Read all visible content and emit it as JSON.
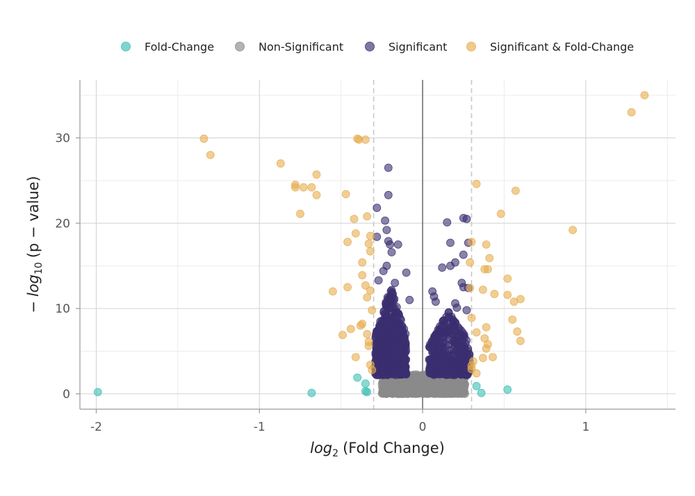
{
  "chart_data": {
    "type": "scatter",
    "title": "",
    "xlabel": {
      "math": "log",
      "sub": "2",
      "rest": "(Fold Change)"
    },
    "ylabel": {
      "prefix": "−",
      "math": "log",
      "sub": "10",
      "rest": "(p − value)"
    },
    "xlim": [
      -2.1,
      1.55
    ],
    "ylim": [
      -1.8,
      36.8
    ],
    "x_ticks": [
      -2,
      -1,
      0,
      1
    ],
    "x_tick_labels": [
      "-2",
      "-1",
      "0",
      "1"
    ],
    "y_ticks": [
      0,
      10,
      20,
      30
    ],
    "y_tick_labels": [
      "0",
      "10",
      "20",
      "30"
    ],
    "grid": true,
    "legend_position": "top",
    "thresholds": {
      "fold_change": [
        -0.3,
        0.3
      ],
      "zero_line_x": 0
    },
    "series": [
      {
        "name": "Fold-Change",
        "color": "#3cbfb4",
        "points": [
          [
            -1.99,
            0.2
          ],
          [
            -0.68,
            0.1
          ],
          [
            -0.4,
            1.9
          ],
          [
            -0.35,
            1.2
          ],
          [
            -0.35,
            0.3
          ],
          [
            -0.34,
            0.2
          ],
          [
            0.33,
            0.9
          ],
          [
            0.36,
            0.1
          ],
          [
            0.52,
            0.5
          ]
        ]
      },
      {
        "name": "Non-Significant",
        "color": "#8a8a8a",
        "cloud": {
          "x_range": [
            -0.25,
            0.26
          ],
          "y_range": [
            0,
            2.3
          ],
          "count": 700
        }
      },
      {
        "name": "Significant",
        "color": "#3b2e70",
        "points": [
          [
            -0.21,
            26.5
          ],
          [
            -0.21,
            23.3
          ],
          [
            -0.28,
            21.8
          ],
          [
            -0.23,
            20.3
          ],
          [
            -0.22,
            19.2
          ],
          [
            -0.28,
            18.4
          ],
          [
            -0.21,
            17.9
          ],
          [
            -0.2,
            17.5
          ],
          [
            -0.19,
            16.6
          ],
          [
            -0.15,
            17.5
          ],
          [
            -0.22,
            15.0
          ],
          [
            -0.24,
            14.4
          ],
          [
            -0.1,
            14.2
          ],
          [
            -0.17,
            13.0
          ],
          [
            -0.27,
            13.3
          ],
          [
            0.25,
            20.6
          ],
          [
            0.15,
            20.1
          ],
          [
            0.27,
            20.5
          ],
          [
            0.17,
            17.7
          ],
          [
            0.28,
            17.7
          ],
          [
            0.25,
            16.3
          ],
          [
            0.2,
            15.4
          ],
          [
            0.17,
            15.0
          ],
          [
            0.12,
            14.8
          ],
          [
            0.24,
            13.0
          ],
          [
            0.28,
            12.4
          ],
          [
            0.25,
            12.5
          ],
          [
            0.06,
            12.0
          ],
          [
            0.07,
            11.4
          ],
          [
            0.08,
            10.8
          ],
          [
            0.2,
            10.6
          ],
          [
            0.21,
            10.1
          ],
          [
            -0.08,
            11.0
          ],
          [
            0.16,
            9.5
          ],
          [
            0.27,
            9.8
          ]
        ],
        "clouds": [
          {
            "x_range": [
              -0.29,
              -0.1
            ],
            "y_min": 2.2,
            "y_peak": 12.5,
            "count": 520
          },
          {
            "x_range": [
              0.04,
              0.29
            ],
            "y_min": 2.2,
            "y_peak": 10.0,
            "count": 340
          }
        ]
      },
      {
        "name": "Significant & Fold-Change",
        "color": "#e6ad4f",
        "points": [
          [
            -1.34,
            29.9
          ],
          [
            -1.3,
            28.0
          ],
          [
            -0.87,
            27.0
          ],
          [
            -0.78,
            24.5
          ],
          [
            -0.78,
            24.2
          ],
          [
            -0.73,
            24.2
          ],
          [
            -0.68,
            24.2
          ],
          [
            -0.65,
            25.7
          ],
          [
            -0.65,
            23.3
          ],
          [
            -0.75,
            21.1
          ],
          [
            -0.47,
            23.4
          ],
          [
            -0.42,
            20.5
          ],
          [
            -0.41,
            18.8
          ],
          [
            -0.4,
            29.9
          ],
          [
            -0.39,
            29.8
          ],
          [
            -0.35,
            29.8
          ],
          [
            -0.34,
            20.8
          ],
          [
            -0.32,
            18.5
          ],
          [
            -0.33,
            17.6
          ],
          [
            -0.32,
            16.7
          ],
          [
            -0.46,
            17.8
          ],
          [
            -0.37,
            15.4
          ],
          [
            -0.55,
            12.0
          ],
          [
            -0.46,
            12.5
          ],
          [
            -0.37,
            13.9
          ],
          [
            -0.35,
            12.7
          ],
          [
            -0.32,
            12.1
          ],
          [
            -0.34,
            11.3
          ],
          [
            -0.31,
            9.8
          ],
          [
            -0.37,
            8.2
          ],
          [
            -0.38,
            8.0
          ],
          [
            -0.44,
            7.6
          ],
          [
            -0.49,
            6.9
          ],
          [
            -0.34,
            7.0
          ],
          [
            -0.33,
            6.1
          ],
          [
            -0.33,
            5.6
          ],
          [
            -0.41,
            4.3
          ],
          [
            -0.32,
            3.4
          ],
          [
            -0.31,
            2.8
          ],
          [
            0.33,
            24.6
          ],
          [
            0.57,
            23.8
          ],
          [
            0.48,
            21.1
          ],
          [
            0.92,
            19.2
          ],
          [
            0.3,
            17.8
          ],
          [
            0.39,
            17.5
          ],
          [
            0.41,
            15.9
          ],
          [
            0.29,
            15.4
          ],
          [
            0.38,
            14.6
          ],
          [
            0.4,
            14.6
          ],
          [
            0.52,
            13.5
          ],
          [
            0.29,
            12.4
          ],
          [
            0.37,
            12.2
          ],
          [
            0.44,
            11.7
          ],
          [
            0.52,
            11.6
          ],
          [
            0.56,
            10.8
          ],
          [
            0.6,
            11.1
          ],
          [
            0.3,
            8.9
          ],
          [
            0.55,
            8.7
          ],
          [
            0.58,
            7.3
          ],
          [
            0.39,
            7.8
          ],
          [
            0.33,
            7.2
          ],
          [
            0.38,
            6.5
          ],
          [
            0.4,
            5.8
          ],
          [
            0.39,
            5.3
          ],
          [
            0.6,
            6.2
          ],
          [
            0.43,
            4.3
          ],
          [
            0.37,
            4.2
          ],
          [
            0.31,
            3.8
          ],
          [
            0.3,
            3.3
          ],
          [
            0.3,
            2.9
          ],
          [
            0.33,
            2.4
          ],
          [
            1.28,
            33.0
          ],
          [
            1.36,
            35.0
          ]
        ]
      }
    ]
  }
}
